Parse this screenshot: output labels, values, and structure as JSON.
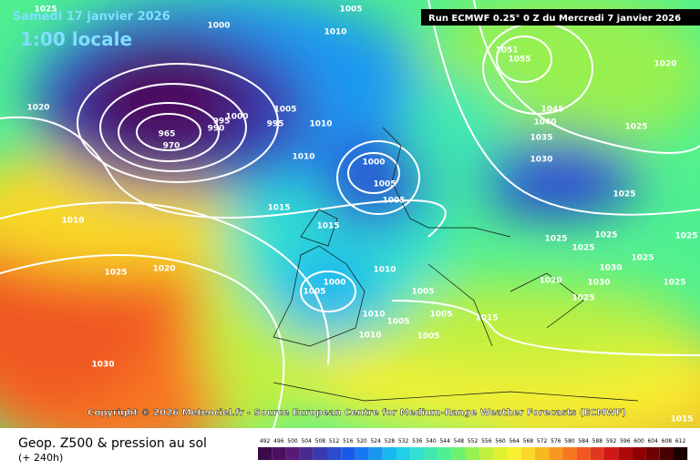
{
  "header": {
    "date": "Samedi 17 janvier 2026",
    "time": "1:00 locale",
    "run": "Run ECMWF 0.25° 0 Z du Mercredi 7 janvier 2026"
  },
  "copyright": "Copyright © 2026 Meteociel.fr - Source European Centre for Medium-Range Weather Forecasts (ECMWF)",
  "legend": {
    "title": "Geop. Z500 & pression au sol",
    "lead": "(+ 240h)"
  },
  "colorbar": {
    "labels": [
      492,
      496,
      500,
      504,
      508,
      512,
      516,
      520,
      524,
      528,
      532,
      536,
      540,
      544,
      548,
      552,
      556,
      560,
      564,
      568,
      572,
      576,
      580,
      584,
      588,
      592,
      596,
      600,
      604,
      608,
      612
    ],
    "colors": [
      "#3a0a4a",
      "#4b1060",
      "#5a1a78",
      "#4a2a90",
      "#3a3ab0",
      "#2a4ad0",
      "#1a5ae8",
      "#1a78f0",
      "#1a98f0",
      "#1ab8f0",
      "#20d0e8",
      "#30e0d0",
      "#40e8b0",
      "#50f090",
      "#70f070",
      "#98f050",
      "#c0f040",
      "#e0f030",
      "#f8f030",
      "#f8d828",
      "#f8b820",
      "#f89820",
      "#f87820",
      "#f05820",
      "#e03820",
      "#d01818",
      "#b00808",
      "#900000",
      "#700000",
      "#480000",
      "#1a0000"
    ]
  },
  "isobars": [
    "1025",
    "1005",
    "1000",
    "1010",
    "1020",
    "965",
    "970",
    "990",
    "995",
    "1000",
    "995",
    "1005",
    "1010",
    "1010",
    "1010",
    "1015",
    "1015",
    "1025",
    "1020",
    "1030",
    "1000",
    "1005",
    "1005",
    "1000",
    "1005",
    "1010",
    "1005",
    "1010",
    "1005",
    "1005",
    "1005",
    "1015",
    "1010",
    "1051",
    "1055",
    "1045",
    "1040",
    "1035",
    "1030",
    "1025",
    "1025",
    "1025",
    "1025",
    "1025",
    "1030",
    "1030",
    "1025",
    "1025",
    "1025",
    "1020",
    "1025",
    "1020",
    "1015"
  ]
}
